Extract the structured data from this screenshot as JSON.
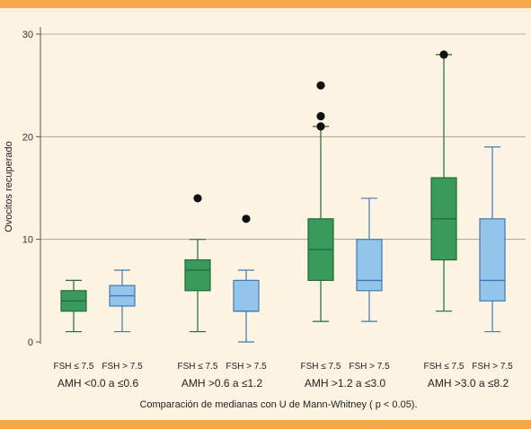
{
  "chart_data": {
    "type": "boxplot",
    "ylabel": "Ovocitos recuperado",
    "xlabel": "Comparación de medianas con U de Mann-Whitney ( p < 0.05).",
    "ylim": [
      0,
      30
    ],
    "yticks": [
      0,
      10,
      20,
      30
    ],
    "grid": true,
    "series_colors": {
      "FSH ≤ 7.5": "#3a9a5c",
      "FSH > 7.5": "#93c5eb"
    },
    "stroke_colors": {
      "FSH ≤ 7.5": "#1e6b39",
      "FSH > 7.5": "#3f78b5"
    },
    "groups": [
      {
        "label": "AMH <0.0 a ≤0.6",
        "boxes": [
          {
            "name": "FSH ≤ 7.5",
            "min": 1,
            "q1": 3,
            "median": 4,
            "q3": 5,
            "max": 6,
            "outliers": []
          },
          {
            "name": "FSH > 7.5",
            "min": 1,
            "q1": 3.5,
            "median": 4.5,
            "q3": 5.5,
            "max": 7,
            "outliers": []
          }
        ]
      },
      {
        "label": "AMH >0.6 a ≤1.2",
        "boxes": [
          {
            "name": "FSH ≤ 7.5",
            "min": 1,
            "q1": 5,
            "median": 7,
            "q3": 8,
            "max": 10,
            "outliers": [
              14
            ]
          },
          {
            "name": "FSH > 7.5",
            "min": 0,
            "q1": 3,
            "median": 3,
            "q3": 6,
            "max": 7,
            "outliers": [
              12
            ]
          }
        ]
      },
      {
        "label": "AMH >1.2 a ≤3.0",
        "boxes": [
          {
            "name": "FSH ≤ 7.5",
            "min": 2,
            "q1": 6,
            "median": 9,
            "q3": 12,
            "max": 21,
            "outliers": [
              21,
              22,
              25
            ]
          },
          {
            "name": "FSH > 7.5",
            "min": 2,
            "q1": 5,
            "median": 6,
            "q3": 10,
            "max": 14,
            "outliers": []
          }
        ]
      },
      {
        "label": "AMH >3.0 a ≤8.2",
        "boxes": [
          {
            "name": "FSH ≤ 7.5",
            "min": 3,
            "q1": 8,
            "median": 12,
            "q3": 16,
            "max": 28,
            "outliers": [
              28
            ]
          },
          {
            "name": "FSH > 7.5",
            "min": 1,
            "q1": 4,
            "median": 6,
            "q3": 12,
            "max": 19,
            "outliers": []
          }
        ]
      }
    ]
  }
}
